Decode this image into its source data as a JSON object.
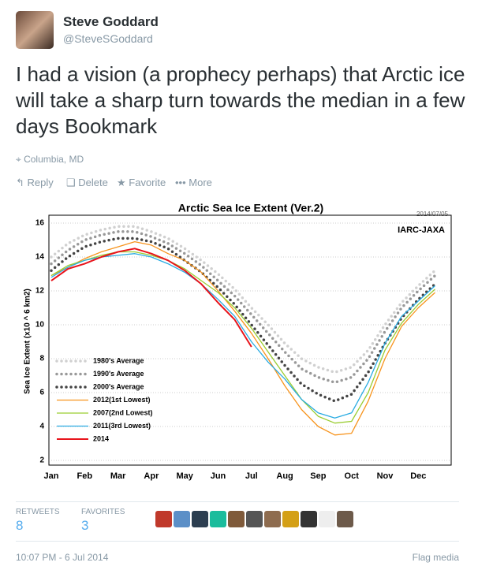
{
  "tweet": {
    "name": "Steve Goddard",
    "handle": "@SteveSGoddard",
    "text": "I had a vision (a prophecy perhaps) that Arctic ice will take a sharp turn towards the median in a few days Bookmark",
    "location": "Columbia, MD",
    "actions": [
      "Reply",
      "Delete",
      "Favorite",
      "More"
    ],
    "stats": [
      {
        "label": "RETWEETS",
        "value": 8
      },
      {
        "label": "FAVORITES",
        "value": 3
      }
    ],
    "timestamp": "10:07 PM - 6 Jul 2014",
    "flag": "Flag media"
  },
  "chart_data": {
    "type": "line",
    "title": "Arctic Sea Ice Extent (Ver.2)",
    "date": "2014/07/05",
    "source": "IARC-JAXA",
    "y_label": "Sea Ice Extent (x10 ^ 6 km2)",
    "categories": [
      "Jan",
      null,
      "Feb",
      null,
      "Mar",
      null,
      "Apr",
      null,
      "May",
      null,
      "Jun",
      null,
      "Jul",
      null,
      "Aug",
      null,
      "Sep",
      null,
      "Oct",
      null,
      "Nov",
      null,
      "Dec",
      null
    ],
    "ylim": [
      2,
      16
    ],
    "yticks": [
      2,
      4,
      6,
      8,
      10,
      12,
      14,
      16
    ],
    "grid": true,
    "legend": "lower-left",
    "series": [
      {
        "name": "1980's Average",
        "color": "#d0d0d0",
        "linestyle": "dotted",
        "values": [
          14.0,
          14.8,
          15.3,
          15.6,
          15.8,
          15.8,
          15.5,
          15.1,
          14.5,
          13.8,
          13.0,
          12.1,
          11.0,
          10.0,
          8.9,
          8.0,
          7.5,
          7.2,
          7.5,
          8.5,
          10.0,
          11.3,
          12.3,
          13.2
        ]
      },
      {
        "name": "1990's Average",
        "color": "#999999",
        "linestyle": "dotted",
        "values": [
          13.6,
          14.4,
          15.0,
          15.3,
          15.5,
          15.5,
          15.2,
          14.8,
          14.2,
          13.5,
          12.6,
          11.7,
          10.6,
          9.5,
          8.4,
          7.4,
          6.9,
          6.6,
          6.9,
          8.0,
          9.6,
          11.0,
          12.0,
          12.9
        ]
      },
      {
        "name": "2000's Average",
        "color": "#444444",
        "linestyle": "dotted",
        "values": [
          13.2,
          14.0,
          14.6,
          14.9,
          15.1,
          15.1,
          14.9,
          14.5,
          13.8,
          13.1,
          12.2,
          11.2,
          10.0,
          8.8,
          7.6,
          6.5,
          5.9,
          5.5,
          5.9,
          7.2,
          8.9,
          10.4,
          11.5,
          12.4
        ]
      },
      {
        "name": "2012(1st Lowest)",
        "color": "#f7941d",
        "linestyle": "solid",
        "values": [
          12.9,
          13.4,
          13.9,
          14.3,
          14.6,
          14.9,
          14.7,
          14.2,
          13.8,
          13.1,
          12.0,
          10.8,
          9.5,
          8.0,
          6.4,
          5.0,
          4.0,
          3.5,
          3.6,
          5.5,
          8.0,
          9.9,
          11.0,
          11.9
        ]
      },
      {
        "name": "2007(2nd Lowest)",
        "color": "#9acd32",
        "linestyle": "solid",
        "values": [
          12.9,
          13.5,
          13.8,
          14.1,
          14.3,
          14.3,
          14.1,
          13.8,
          13.3,
          12.6,
          11.9,
          11.0,
          9.8,
          8.4,
          7.0,
          5.6,
          4.6,
          4.2,
          4.3,
          6.0,
          8.5,
          10.1,
          11.2,
          12.1
        ]
      },
      {
        "name": "2011(3rd Lowest)",
        "color": "#29abe2",
        "linestyle": "solid",
        "values": [
          12.8,
          13.4,
          13.8,
          14.0,
          14.1,
          14.2,
          14.0,
          13.6,
          13.1,
          12.4,
          11.5,
          10.5,
          9.0,
          7.8,
          6.8,
          5.6,
          4.8,
          4.5,
          4.8,
          6.6,
          8.9,
          10.5,
          11.4,
          12.3
        ]
      },
      {
        "name": "2014",
        "color": "#e8141b",
        "linestyle": "solid",
        "values": [
          12.6,
          13.3,
          13.6,
          14.0,
          14.3,
          14.5,
          14.2,
          13.8,
          13.2,
          12.4,
          11.3,
          10.3,
          8.7,
          null,
          null,
          null,
          null,
          null,
          null,
          null,
          null,
          null,
          null,
          null
        ]
      }
    ]
  }
}
